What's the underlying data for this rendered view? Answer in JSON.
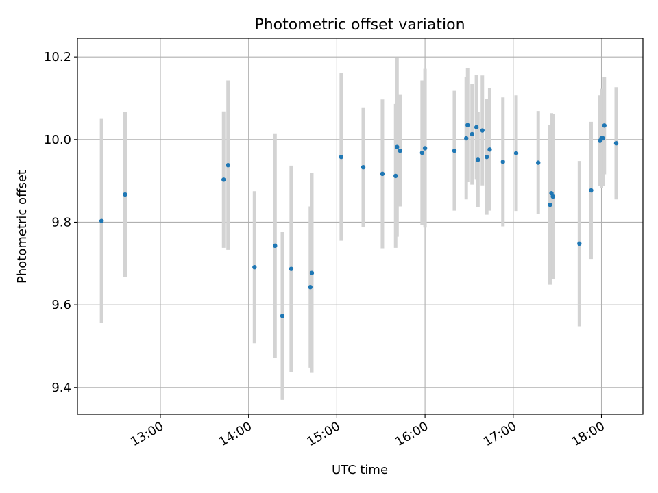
{
  "chart_data": {
    "type": "scatter",
    "title": "Photometric offset variation",
    "xlabel": "UTC time",
    "ylabel": "Photometric offset",
    "x_unit": "hours (UTC)",
    "xlim": [
      12.06,
      18.47
    ],
    "ylim": [
      9.335,
      10.245
    ],
    "x_ticks": [
      {
        "value": 13,
        "label": "13:00"
      },
      {
        "value": 14,
        "label": "14:00"
      },
      {
        "value": 15,
        "label": "15:00"
      },
      {
        "value": 16,
        "label": "16:00"
      },
      {
        "value": 17,
        "label": "17:00"
      },
      {
        "value": 18,
        "label": "18:00"
      }
    ],
    "y_ticks": [
      {
        "value": 9.4,
        "label": "9.4"
      },
      {
        "value": 9.6,
        "label": "9.6"
      },
      {
        "value": 9.8,
        "label": "9.8"
      },
      {
        "value": 10.0,
        "label": "10.0"
      },
      {
        "value": 10.2,
        "label": "10.2"
      }
    ],
    "grid": true,
    "colors": {
      "point": "#1f77b4",
      "errorbar": "#d3d3d3",
      "grid": "#b0b0b0"
    },
    "points": [
      {
        "x": 12.333,
        "y": 9.803,
        "err": 0.247
      },
      {
        "x": 12.6,
        "y": 9.867,
        "err": 0.2
      },
      {
        "x": 13.717,
        "y": 9.903,
        "err": 0.165
      },
      {
        "x": 13.767,
        "y": 9.938,
        "err": 0.205
      },
      {
        "x": 14.067,
        "y": 9.691,
        "err": 0.184
      },
      {
        "x": 14.3,
        "y": 9.743,
        "err": 0.272
      },
      {
        "x": 14.383,
        "y": 9.573,
        "err": 0.203
      },
      {
        "x": 14.483,
        "y": 9.687,
        "err": 0.25
      },
      {
        "x": 14.7,
        "y": 9.643,
        "err": 0.195
      },
      {
        "x": 14.717,
        "y": 9.677,
        "err": 0.242
      },
      {
        "x": 15.05,
        "y": 9.958,
        "err": 0.203
      },
      {
        "x": 15.3,
        "y": 9.933,
        "err": 0.145
      },
      {
        "x": 15.517,
        "y": 9.917,
        "err": 0.18
      },
      {
        "x": 15.667,
        "y": 9.912,
        "err": 0.174
      },
      {
        "x": 15.683,
        "y": 9.982,
        "err": 0.217
      },
      {
        "x": 15.717,
        "y": 9.973,
        "err": 0.135
      },
      {
        "x": 15.967,
        "y": 9.968,
        "err": 0.175
      },
      {
        "x": 16.0,
        "y": 9.979,
        "err": 0.192
      },
      {
        "x": 16.333,
        "y": 9.973,
        "err": 0.145
      },
      {
        "x": 16.467,
        "y": 10.003,
        "err": 0.148
      },
      {
        "x": 16.483,
        "y": 10.035,
        "err": 0.138
      },
      {
        "x": 16.533,
        "y": 10.013,
        "err": 0.122
      },
      {
        "x": 16.583,
        "y": 10.03,
        "err": 0.127
      },
      {
        "x": 16.6,
        "y": 9.951,
        "err": 0.115
      },
      {
        "x": 16.65,
        "y": 10.022,
        "err": 0.133
      },
      {
        "x": 16.7,
        "y": 9.958,
        "err": 0.14
      },
      {
        "x": 16.733,
        "y": 9.976,
        "err": 0.148
      },
      {
        "x": 16.883,
        "y": 9.946,
        "err": 0.156
      },
      {
        "x": 17.033,
        "y": 9.967,
        "err": 0.14
      },
      {
        "x": 17.283,
        "y": 9.944,
        "err": 0.125
      },
      {
        "x": 17.417,
        "y": 9.842,
        "err": 0.193
      },
      {
        "x": 17.433,
        "y": 9.87,
        "err": 0.194
      },
      {
        "x": 17.45,
        "y": 9.862,
        "err": 0.2
      },
      {
        "x": 17.75,
        "y": 9.748,
        "err": 0.2
      },
      {
        "x": 17.883,
        "y": 9.877,
        "err": 0.166
      },
      {
        "x": 17.983,
        "y": 9.997,
        "err": 0.11
      },
      {
        "x": 18.0,
        "y": 10.003,
        "err": 0.12
      },
      {
        "x": 18.017,
        "y": 10.003,
        "err": 0.115
      },
      {
        "x": 18.033,
        "y": 10.034,
        "err": 0.118
      },
      {
        "x": 18.167,
        "y": 9.991,
        "err": 0.136
      }
    ]
  }
}
